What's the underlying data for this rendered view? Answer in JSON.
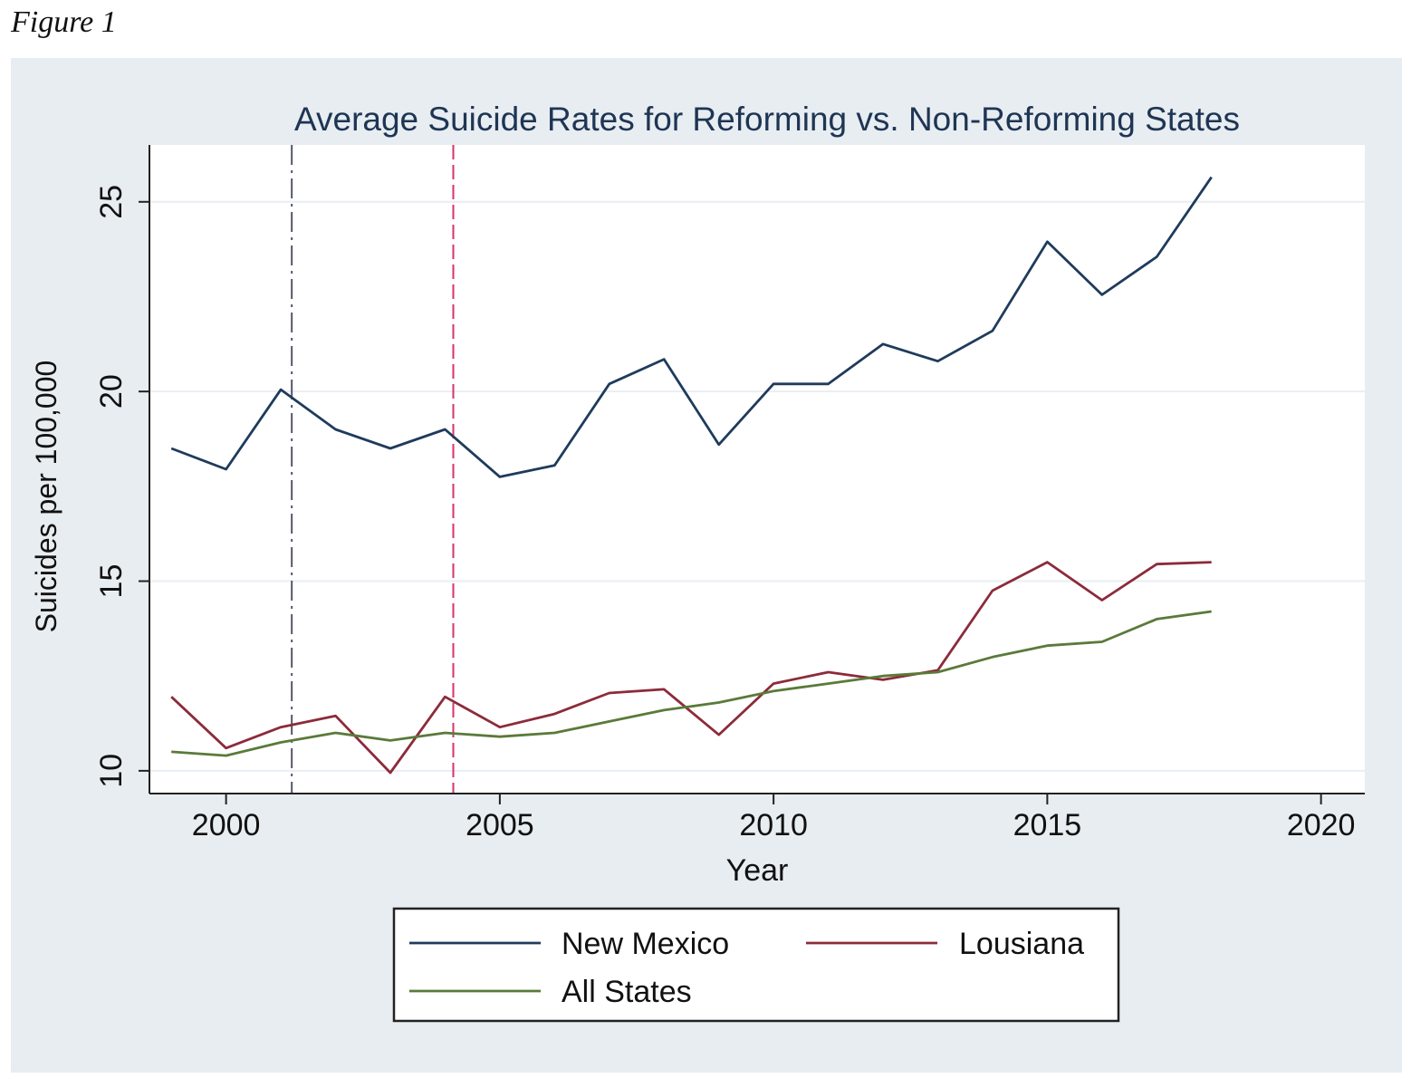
{
  "caption": "Figure 1",
  "chart_data": {
    "type": "line",
    "title": "Average Suicide Rates for Reforming vs. Non-Reforming States",
    "xlabel": "Year",
    "ylabel": "Suicides per 100,000",
    "xlim": [
      1998.6,
      2020.8
    ],
    "ylim": [
      9.4,
      26.5
    ],
    "xticks": [
      2000,
      2005,
      2010,
      2015,
      2020
    ],
    "yticks": [
      10,
      15,
      20,
      25
    ],
    "grid": true,
    "legend_position": "bottom",
    "reference_lines": [
      {
        "x": 2001.2,
        "color": "#55556e",
        "style": "dash-dot"
      },
      {
        "x": 2004.15,
        "color": "#d6336c",
        "style": "dashed"
      }
    ],
    "x": [
      1999,
      2000,
      2001,
      2002,
      2003,
      2004,
      2005,
      2006,
      2007,
      2008,
      2009,
      2010,
      2011,
      2012,
      2013,
      2014,
      2015,
      2016,
      2017,
      2018
    ],
    "series": [
      {
        "name": "New Mexico",
        "color": "#1f3b5c",
        "values": [
          18.5,
          17.95,
          20.05,
          19.0,
          18.5,
          19.0,
          17.75,
          18.05,
          20.2,
          20.85,
          18.6,
          20.2,
          20.2,
          21.25,
          20.8,
          21.6,
          23.95,
          22.55,
          23.55,
          25.65
        ]
      },
      {
        "name": "Lousiana",
        "color": "#8c2b3a",
        "values": [
          11.95,
          10.6,
          11.15,
          11.45,
          9.95,
          11.95,
          11.15,
          11.5,
          12.05,
          12.15,
          10.95,
          12.3,
          12.6,
          12.4,
          12.65,
          14.75,
          15.5,
          14.5,
          15.45,
          15.5
        ]
      },
      {
        "name": "All States",
        "color": "#5a7a3a",
        "values": [
          10.5,
          10.4,
          10.75,
          11.0,
          10.8,
          11.0,
          10.9,
          11.0,
          11.3,
          11.6,
          11.8,
          12.1,
          12.3,
          12.5,
          12.6,
          13.0,
          13.3,
          13.4,
          14.0,
          14.2
        ]
      }
    ]
  }
}
